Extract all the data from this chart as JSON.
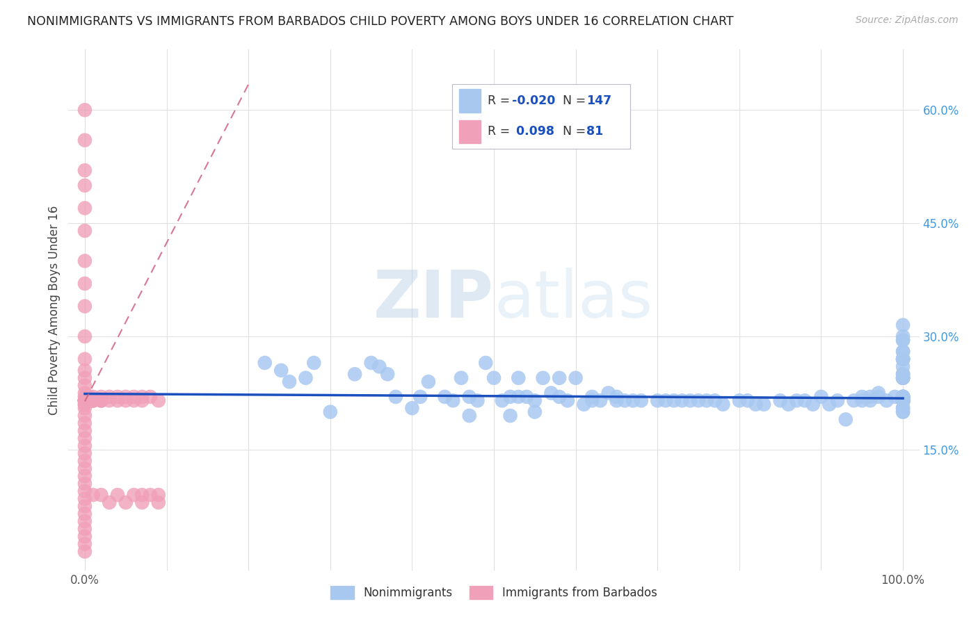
{
  "title": "NONIMMIGRANTS VS IMMIGRANTS FROM BARBADOS CHILD POVERTY AMONG BOYS UNDER 16 CORRELATION CHART",
  "source": "Source: ZipAtlas.com",
  "ylabel": "Child Poverty Among Boys Under 16",
  "watermark": "ZIPatlas",
  "xlim": [
    -0.02,
    1.02
  ],
  "ylim": [
    -0.01,
    0.68
  ],
  "color_nonimm": "#a8c8f0",
  "color_imm": "#f0a0b8",
  "color_line_nonimm": "#1a4fbd",
  "color_line_imm": "#d06080",
  "background_color": "#ffffff",
  "grid_color": "#e0e0e0",
  "nonimm_x": [
    0.22,
    0.24,
    0.25,
    0.27,
    0.28,
    0.3,
    0.33,
    0.35,
    0.36,
    0.37,
    0.38,
    0.4,
    0.41,
    0.42,
    0.44,
    0.45,
    0.46,
    0.47,
    0.47,
    0.48,
    0.49,
    0.5,
    0.51,
    0.52,
    0.52,
    0.53,
    0.53,
    0.54,
    0.55,
    0.55,
    0.56,
    0.57,
    0.58,
    0.58,
    0.59,
    0.6,
    0.61,
    0.62,
    0.62,
    0.63,
    0.64,
    0.65,
    0.65,
    0.66,
    0.67,
    0.68,
    0.7,
    0.71,
    0.72,
    0.73,
    0.74,
    0.75,
    0.76,
    0.77,
    0.78,
    0.8,
    0.81,
    0.82,
    0.83,
    0.85,
    0.86,
    0.87,
    0.88,
    0.89,
    0.9,
    0.91,
    0.92,
    0.93,
    0.94,
    0.95,
    0.95,
    0.96,
    0.96,
    0.97,
    0.97,
    0.98,
    0.99,
    1.0,
    1.0,
    1.0,
    1.0,
    1.0,
    1.0,
    1.0,
    1.0,
    1.0,
    1.0,
    1.0,
    1.0,
    1.0,
    1.0,
    1.0,
    1.0,
    1.0,
    1.0,
    1.0,
    1.0,
    1.0,
    1.0,
    1.0,
    1.0,
    1.0,
    1.0,
    1.0,
    1.0,
    1.0,
    1.0,
    1.0,
    1.0,
    1.0,
    1.0,
    1.0,
    1.0,
    1.0,
    1.0,
    1.0,
    1.0,
    1.0,
    1.0,
    1.0,
    1.0,
    1.0,
    1.0,
    1.0,
    1.0,
    1.0,
    1.0,
    1.0,
    1.0,
    1.0,
    1.0,
    1.0,
    1.0,
    1.0,
    1.0,
    1.0,
    1.0,
    1.0,
    1.0,
    1.0,
    1.0,
    1.0,
    1.0,
    1.0,
    1.0,
    1.0,
    1.0
  ],
  "nonimm_y": [
    0.265,
    0.255,
    0.24,
    0.245,
    0.265,
    0.2,
    0.25,
    0.265,
    0.26,
    0.25,
    0.22,
    0.205,
    0.22,
    0.24,
    0.22,
    0.215,
    0.245,
    0.22,
    0.195,
    0.215,
    0.265,
    0.245,
    0.215,
    0.22,
    0.195,
    0.22,
    0.245,
    0.22,
    0.215,
    0.2,
    0.245,
    0.225,
    0.22,
    0.245,
    0.215,
    0.245,
    0.21,
    0.22,
    0.215,
    0.215,
    0.225,
    0.215,
    0.22,
    0.215,
    0.215,
    0.215,
    0.215,
    0.215,
    0.215,
    0.215,
    0.215,
    0.215,
    0.215,
    0.215,
    0.21,
    0.215,
    0.215,
    0.21,
    0.21,
    0.215,
    0.21,
    0.215,
    0.215,
    0.21,
    0.22,
    0.21,
    0.215,
    0.19,
    0.215,
    0.22,
    0.215,
    0.22,
    0.215,
    0.225,
    0.22,
    0.215,
    0.22,
    0.245,
    0.25,
    0.27,
    0.22,
    0.245,
    0.28,
    0.25,
    0.245,
    0.27,
    0.215,
    0.25,
    0.295,
    0.22,
    0.26,
    0.27,
    0.22,
    0.28,
    0.315,
    0.27,
    0.3,
    0.22,
    0.245,
    0.27,
    0.22,
    0.295,
    0.245,
    0.215,
    0.22,
    0.205,
    0.215,
    0.215,
    0.215,
    0.215,
    0.215,
    0.205,
    0.215,
    0.215,
    0.215,
    0.2,
    0.215,
    0.22,
    0.215,
    0.215,
    0.215,
    0.215,
    0.215,
    0.2,
    0.215,
    0.215,
    0.215,
    0.215,
    0.22,
    0.215,
    0.215,
    0.215,
    0.215,
    0.215,
    0.215,
    0.215,
    0.215,
    0.215,
    0.215,
    0.215,
    0.215,
    0.215,
    0.215,
    0.215,
    0.215,
    0.215,
    0.215
  ],
  "imm_x": [
    0.0,
    0.0,
    0.0,
    0.0,
    0.0,
    0.0,
    0.0,
    0.0,
    0.0,
    0.0,
    0.0,
    0.0,
    0.0,
    0.0,
    0.0,
    0.0,
    0.0,
    0.0,
    0.0,
    0.0,
    0.0,
    0.0,
    0.0,
    0.0,
    0.0,
    0.0,
    0.0,
    0.0,
    0.0,
    0.0,
    0.0,
    0.0,
    0.0,
    0.0,
    0.0,
    0.0,
    0.0,
    0.0,
    0.0,
    0.0,
    0.0,
    0.0,
    0.0,
    0.0,
    0.0,
    0.0,
    0.005,
    0.005,
    0.01,
    0.01,
    0.01,
    0.01,
    0.01,
    0.01,
    0.02,
    0.02,
    0.02,
    0.02,
    0.02,
    0.03,
    0.03,
    0.03,
    0.04,
    0.04,
    0.04,
    0.05,
    0.05,
    0.05,
    0.06,
    0.06,
    0.06,
    0.07,
    0.07,
    0.07,
    0.07,
    0.08,
    0.08,
    0.09,
    0.09,
    0.09
  ],
  "imm_y": [
    0.6,
    0.56,
    0.52,
    0.5,
    0.47,
    0.44,
    0.4,
    0.37,
    0.34,
    0.3,
    0.27,
    0.255,
    0.245,
    0.235,
    0.225,
    0.215,
    0.205,
    0.195,
    0.185,
    0.175,
    0.165,
    0.155,
    0.145,
    0.135,
    0.125,
    0.115,
    0.105,
    0.095,
    0.085,
    0.075,
    0.065,
    0.055,
    0.045,
    0.035,
    0.025,
    0.015,
    0.215,
    0.22,
    0.21,
    0.215,
    0.215,
    0.21,
    0.215,
    0.215,
    0.215,
    0.215,
    0.22,
    0.215,
    0.22,
    0.215,
    0.215,
    0.215,
    0.215,
    0.09,
    0.22,
    0.215,
    0.215,
    0.215,
    0.09,
    0.22,
    0.215,
    0.08,
    0.22,
    0.215,
    0.09,
    0.22,
    0.215,
    0.08,
    0.22,
    0.215,
    0.09,
    0.22,
    0.215,
    0.09,
    0.08,
    0.22,
    0.09,
    0.215,
    0.09,
    0.08
  ],
  "imm_trend_x": [
    0.0,
    0.18
  ],
  "imm_trend_y_start": 0.215,
  "imm_trend_slope": 2.2
}
